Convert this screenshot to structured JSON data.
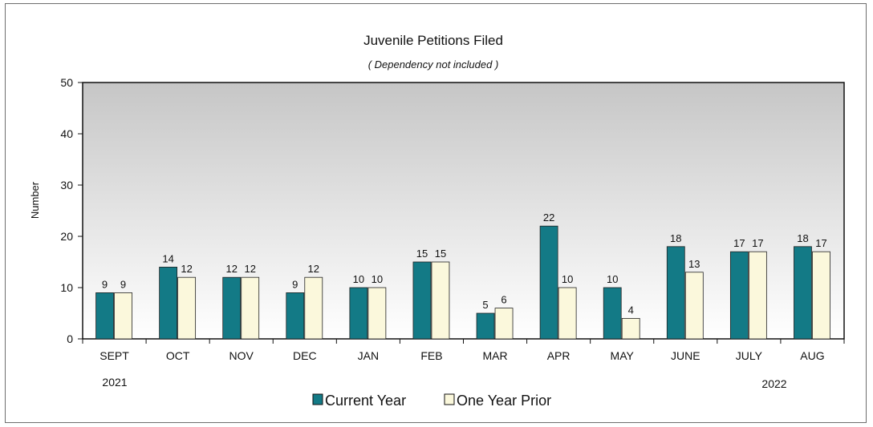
{
  "chart_data": {
    "type": "bar",
    "title": "Juvenile Petitions Filed",
    "subtitle": "( Dependency not included )",
    "ylabel": "Number",
    "xlabel": "",
    "ylim": [
      0,
      50
    ],
    "yticks": [
      0,
      10,
      20,
      30,
      40,
      50
    ],
    "grid": false,
    "legend_position": "bottom",
    "categories": [
      "SEPT",
      "OCT",
      "NOV",
      "DEC",
      "JAN",
      "FEB",
      "MAR",
      "APR",
      "MAY",
      "JUNE",
      "JULY",
      "AUG"
    ],
    "year_labels": {
      "start": "2021",
      "end": "2022"
    },
    "series": [
      {
        "name": "Current Year",
        "color": "#137a86",
        "values": [
          9,
          14,
          12,
          9,
          10,
          15,
          5,
          22,
          10,
          18,
          17,
          18
        ]
      },
      {
        "name": "One Year Prior",
        "color": "#fbf8dc",
        "values": [
          9,
          12,
          12,
          12,
          10,
          15,
          6,
          10,
          4,
          13,
          17,
          17
        ]
      }
    ],
    "plot_background_gradient": [
      "#c6c6c6",
      "#ffffff"
    ]
  }
}
